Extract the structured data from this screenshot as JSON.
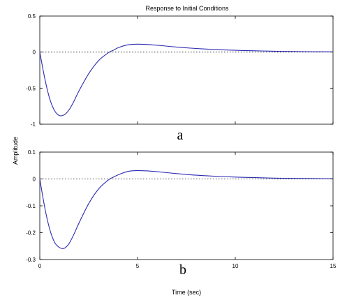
{
  "chart_data": [
    {
      "type": "line",
      "panel_label": "a",
      "title": "Response to Initial Conditions",
      "xlabel": "",
      "ylabel": "Amplitude",
      "xlim": [
        0,
        15
      ],
      "ylim": [
        -1,
        0.5
      ],
      "xticks": [],
      "yticks": [
        "0.5",
        "0",
        "-0.5",
        "-1"
      ],
      "reference_line": 0,
      "grid": false,
      "line_color": "#2b2bb0",
      "series": [
        {
          "x": [
            0,
            0.25,
            0.5,
            0.75,
            1.0,
            1.25,
            1.5,
            1.75,
            2.0,
            2.5,
            3.0,
            3.5,
            3.8,
            4.0,
            4.5,
            5.0,
            5.5,
            6.0,
            7.0,
            8.0,
            9.0,
            10.0,
            11.0,
            12.0,
            13.0,
            14.0,
            15.0
          ],
          "y": [
            0,
            -0.36,
            -0.64,
            -0.81,
            -0.88,
            -0.87,
            -0.8,
            -0.68,
            -0.54,
            -0.3,
            -0.12,
            -0.01,
            0.03,
            0.06,
            0.1,
            0.11,
            0.105,
            0.095,
            0.07,
            0.05,
            0.035,
            0.025,
            0.018,
            0.012,
            0.008,
            0.005,
            0.003
          ]
        }
      ]
    },
    {
      "type": "line",
      "panel_label": "b",
      "title": "",
      "xlabel": "Time (sec)",
      "ylabel": "",
      "xlim": [
        0,
        15
      ],
      "ylim": [
        -0.3,
        0.1
      ],
      "xticks": [
        "0",
        "5",
        "10",
        "15"
      ],
      "yticks": [
        "0.1",
        "0",
        "-0.1",
        "-0.2",
        "-0.3"
      ],
      "reference_line": 0,
      "grid": false,
      "line_color": "#2b2bb0",
      "series": [
        {
          "x": [
            0,
            0.25,
            0.5,
            0.75,
            1.0,
            1.25,
            1.5,
            1.75,
            2.0,
            2.5,
            3.0,
            3.5,
            3.8,
            4.0,
            4.5,
            5.0,
            5.5,
            6.0,
            7.0,
            8.0,
            9.0,
            10.0,
            11.0,
            12.0,
            13.0,
            14.0,
            15.0
          ],
          "y": [
            0,
            -0.105,
            -0.185,
            -0.235,
            -0.255,
            -0.258,
            -0.24,
            -0.205,
            -0.165,
            -0.092,
            -0.038,
            -0.004,
            0.008,
            0.015,
            0.028,
            0.031,
            0.03,
            0.027,
            0.02,
            0.014,
            0.01,
            0.007,
            0.005,
            0.003,
            0.002,
            0.0015,
            0.001
          ]
        }
      ]
    }
  ]
}
